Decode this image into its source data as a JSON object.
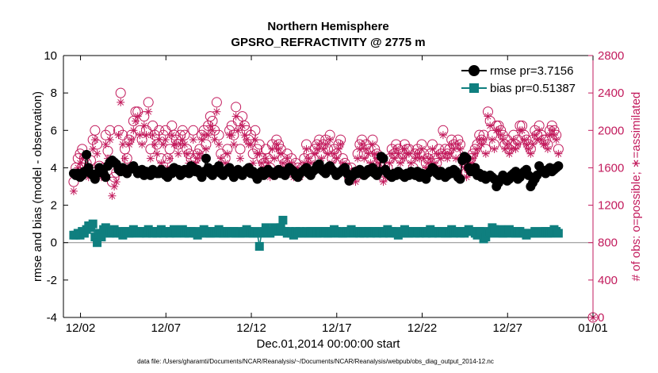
{
  "chart_data": {
    "type": "line",
    "title": "Northern Hemisphere",
    "subtitle": "GPSRO_REFRACTIVITY @ 2775 m",
    "xlabel": "Dec.01,2014 00:00:00 start",
    "ylabel": "rmse and bias (model - observation)",
    "ylabel_right": "# of obs: o=possible; ∗=assimilated",
    "ylim": [
      -4,
      10
    ],
    "ylim_right": [
      0,
      2800
    ],
    "xlim_days": [
      0.0,
      31.0
    ],
    "x_tick_values": [
      1,
      6,
      11,
      16,
      21,
      26,
      31
    ],
    "x_tick_labels": [
      "12/02",
      "12/07",
      "12/12",
      "12/17",
      "12/22",
      "12/27",
      "01/01"
    ],
    "y_tick_labels": [
      "-4",
      "-2",
      "0",
      "2",
      "4",
      "6",
      "8",
      "10"
    ],
    "y_right_tick_labels": [
      "0",
      "400",
      "800",
      "1200",
      "1600",
      "2000",
      "2400",
      "2800"
    ],
    "grid": false,
    "legend_position": "top-right",
    "footer_text": "data file: /Users/gharamti/Documents/NCAR/Reanalysis/~/Documents/NCAR/Reanalysis/webpub/obs_diag_output_2014-12.nc",
    "time_step_days": 0.125,
    "series": [
      {
        "name": "rmse pr=3.7156",
        "marker": "circle",
        "color": "#000000",
        "axis": "left",
        "values": [
          3.7,
          3.6,
          3.7,
          3.5,
          3.6,
          3.8,
          4.7,
          4.0,
          3.7,
          3.6,
          3.4,
          3.7,
          4.0,
          3.9,
          3.7,
          3.5,
          4.1,
          4.3,
          4.4,
          4.3,
          4.2,
          3.9,
          3.8,
          4.0,
          3.8,
          3.7,
          3.9,
          4.0,
          4.1,
          3.9,
          3.7,
          3.8,
          3.9,
          3.6,
          3.8,
          3.7,
          3.6,
          3.9,
          3.8,
          3.7,
          3.7,
          3.9,
          3.8,
          3.6,
          3.5,
          3.8,
          3.7,
          4.0,
          3.8,
          3.9,
          3.6,
          3.7,
          3.9,
          3.8,
          3.7,
          4.1,
          4.0,
          3.8,
          3.9,
          3.7,
          3.5,
          3.8,
          4.5,
          4.0,
          3.7,
          3.6,
          3.9,
          3.8,
          4.1,
          3.7,
          3.6,
          3.8,
          3.9,
          4.0,
          3.7,
          3.5,
          3.8,
          3.9,
          3.7,
          3.6,
          3.8,
          3.9,
          4.0,
          3.7,
          3.8,
          3.6,
          3.4,
          3.7,
          3.8,
          3.6,
          3.7,
          3.9,
          3.8,
          3.7,
          3.6,
          3.8,
          3.9,
          3.7,
          3.8,
          3.6,
          3.8,
          4.0,
          3.9,
          3.8,
          3.6,
          3.5,
          3.7,
          3.8,
          3.9,
          4.0,
          3.7,
          3.6,
          3.8,
          3.9,
          4.1,
          4.2,
          3.9,
          3.8,
          3.7,
          4.0,
          4.1,
          3.9,
          3.8,
          3.6,
          3.7,
          3.8,
          3.9,
          4.0,
          3.7,
          3.3,
          3.5,
          3.6,
          3.8,
          3.7,
          3.9,
          3.8,
          3.6,
          3.7,
          3.9,
          3.8,
          4.0,
          3.7,
          3.6,
          3.8,
          4.6,
          4.5,
          3.9,
          3.7,
          3.6,
          3.5,
          3.7,
          3.6,
          3.8,
          3.7,
          3.6,
          3.5,
          3.7,
          3.6,
          3.8,
          3.7,
          3.6,
          3.8,
          3.5,
          3.7,
          3.6,
          3.4,
          3.7,
          3.8,
          4.0,
          3.9,
          3.7,
          3.6,
          3.8,
          3.7,
          3.5,
          3.6,
          3.8,
          3.7,
          3.9,
          3.8,
          3.5,
          3.4,
          4.4,
          4.6,
          4.5,
          4.0,
          3.8,
          3.9,
          4.0,
          3.6,
          3.7,
          3.5,
          3.6,
          3.4,
          3.5,
          3.6,
          3.5,
          3.4,
          3.0,
          3.2,
          3.4,
          3.6,
          3.5,
          3.3,
          3.4,
          3.6,
          3.7,
          3.8,
          3.4,
          3.5,
          3.7,
          3.8,
          3.9,
          3.6,
          3.0,
          3.2,
          3.4,
          3.6,
          4.1,
          3.9,
          3.8,
          3.7,
          3.9,
          4.0,
          3.8,
          3.9,
          4.0,
          4.1
        ]
      },
      {
        "name": "bias pr=0.51387",
        "marker": "square",
        "color": "#0f7f7f",
        "axis": "left",
        "values": [
          0.4,
          0.4,
          0.5,
          0.4,
          0.6,
          0.5,
          0.7,
          0.9,
          0.8,
          1.0,
          0.3,
          0.0,
          0.5,
          0.3,
          0.7,
          0.8,
          0.6,
          0.5,
          0.6,
          0.7,
          0.5,
          0.6,
          0.5,
          0.4,
          0.6,
          0.6,
          0.5,
          0.5,
          0.7,
          0.6,
          0.6,
          0.5,
          0.6,
          0.6,
          0.5,
          0.7,
          0.6,
          0.5,
          0.6,
          0.5,
          0.6,
          0.7,
          0.5,
          0.6,
          0.6,
          0.5,
          0.6,
          0.7,
          0.5,
          0.6,
          0.6,
          0.7,
          0.5,
          0.6,
          0.5,
          0.6,
          0.6,
          0.5,
          0.4,
          0.5,
          0.6,
          0.7,
          0.6,
          0.5,
          0.5,
          0.6,
          0.6,
          0.5,
          0.7,
          0.6,
          0.5,
          0.5,
          0.6,
          0.6,
          0.5,
          0.6,
          0.5,
          0.6,
          0.5,
          0.5,
          0.6,
          0.7,
          0.6,
          0.5,
          0.5,
          0.6,
          0.5,
          -0.2,
          0.5,
          0.6,
          0.8,
          0.6,
          0.5,
          0.6,
          0.8,
          0.7,
          0.6,
          0.8,
          1.2,
          0.6,
          0.5,
          0.6,
          0.5,
          0.4,
          0.6,
          0.5,
          0.6,
          0.5,
          0.5,
          0.6,
          0.5,
          0.6,
          0.5,
          0.6,
          0.5,
          0.6,
          0.5,
          0.6,
          0.6,
          0.5,
          0.5,
          0.6,
          0.7,
          0.6,
          0.5,
          0.6,
          0.5,
          0.5,
          0.6,
          0.6,
          0.7,
          0.5,
          0.6,
          0.6,
          0.5,
          0.6,
          0.5,
          0.6,
          0.6,
          0.5,
          0.6,
          0.6,
          0.5,
          0.6,
          0.6,
          0.5,
          0.6,
          0.7,
          0.5,
          0.6,
          0.6,
          0.5,
          0.4,
          0.5,
          0.6,
          0.7,
          0.5,
          0.5,
          0.6,
          0.6,
          0.5,
          0.6,
          0.5,
          0.6,
          0.6,
          0.5,
          0.6,
          0.7,
          0.5,
          0.6,
          0.6,
          0.5,
          0.6,
          0.6,
          0.5,
          0.5,
          0.6,
          0.7,
          0.5,
          0.6,
          0.6,
          0.5,
          0.6,
          0.5,
          0.6,
          0.7,
          0.6,
          0.6,
          0.5,
          0.4,
          0.6,
          0.6,
          0.2,
          0.3,
          0.5,
          0.6,
          0.8,
          0.7,
          0.5,
          0.6,
          0.7,
          0.5,
          0.5,
          0.6,
          0.7,
          0.6,
          0.5,
          0.5,
          0.6,
          0.6,
          0.5,
          0.5,
          0.4,
          0.5,
          0.5,
          0.5,
          0.6,
          0.5,
          0.5,
          0.5,
          0.6,
          0.6,
          0.5,
          0.5,
          0.6,
          0.7,
          0.6,
          0.5
        ]
      },
      {
        "name": "possible",
        "marker": "open-circle",
        "color": "#c21a5c",
        "axis": "right",
        "values": [
          1450,
          1600,
          1700,
          1750,
          1800,
          1700,
          1650,
          1550,
          1680,
          1900,
          2000,
          1850,
          1620,
          1570,
          1600,
          1950,
          1780,
          2000,
          1450,
          1500,
          1550,
          2000,
          2400,
          1950,
          1800,
          1700,
          1900,
          1950,
          2100,
          2200,
          2200,
          2000,
          1900,
          2150,
          2000,
          2300,
          1800,
          2050,
          1950,
          1850,
          2000,
          1700,
          1950,
          2000,
          1700,
          1800,
          2050,
          1950,
          1900,
          1850,
          1950,
          2000,
          1950,
          1800,
          1750,
          1700,
          2000,
          1700,
          1750,
          1800,
          1950,
          2000,
          1850,
          2050,
          2150,
          2100,
          2000,
          2300,
          1950,
          1750,
          1600,
          1700,
          1800,
          2000,
          2050,
          1950,
          2250,
          2100,
          1800,
          2150,
          2050,
          2000,
          1900,
          1950,
          1750,
          2000,
          1800,
          1850,
          1700,
          1650,
          1800,
          1700,
          1600,
          1850,
          1750,
          1900,
          1850,
          1800,
          1700,
          1650,
          1750,
          1600,
          1700,
          1550,
          1650,
          1600,
          1550,
          1600,
          1700,
          1850,
          1750,
          1700,
          1600,
          1800,
          1850,
          1900,
          1750,
          1850,
          1900,
          1800,
          1950,
          1700,
          1800,
          1750,
          1850,
          1900,
          1700,
          1650,
          1600,
          1500,
          1600,
          1550,
          1500,
          1750,
          1850,
          1900,
          1750,
          1850,
          1800,
          1700,
          1900,
          1800,
          1750,
          1700,
          1650,
          1500,
          1550,
          1600,
          1700,
          1800,
          1750,
          1850,
          1800,
          1700,
          1750,
          1850,
          1800,
          1800,
          1700,
          1600,
          1750,
          1800,
          1750,
          1850,
          1750,
          1650,
          1700,
          1750,
          1850,
          1700,
          1650,
          1800,
          1750,
          2000,
          1800,
          1750,
          1800,
          1900,
          1850,
          1750,
          1900,
          1850,
          1700,
          1650,
          1550,
          1600,
          1700,
          1750,
          1800,
          1850,
          1950,
          1900,
          1950,
          1800,
          2200,
          2100,
          1950,
          1850,
          2050,
          2050,
          2000,
          1950,
          1850,
          1900,
          1800,
          1850,
          1950,
          1850,
          1900,
          2050,
          2050,
          1950,
          1900,
          1850,
          1800,
          1900,
          2000,
          1950,
          2050,
          1950,
          1900,
          1900,
          1850,
          2000,
          2050,
          2000,
          1950,
          1800
        ]
      },
      {
        "name": "assimilated",
        "marker": "asterisk",
        "color": "#c21a5c",
        "axis": "right",
        "values": [
          1350,
          1550,
          1600,
          1650,
          1700,
          1600,
          1550,
          1500,
          1600,
          1800,
          1900,
          1750,
          1550,
          1500,
          1550,
          1850,
          1700,
          1900,
          1300,
          1400,
          1450,
          1950,
          2300,
          1850,
          1700,
          1600,
          1850,
          1900,
          2000,
          2100,
          2150,
          1950,
          1850,
          2050,
          1950,
          2200,
          1700,
          1950,
          1850,
          1750,
          1900,
          1650,
          1850,
          1900,
          1600,
          1700,
          1950,
          1850,
          1850,
          1750,
          1850,
          1900,
          1850,
          1750,
          1650,
          1600,
          1900,
          1650,
          1700,
          1750,
          1900,
          1950,
          1800,
          1950,
          2050,
          2000,
          1900,
          2200,
          1850,
          1700,
          1550,
          1650,
          1750,
          1950,
          1950,
          1850,
          2150,
          2000,
          1700,
          2050,
          1950,
          1900,
          1850,
          1850,
          1650,
          1900,
          1750,
          1750,
          1650,
          1600,
          1700,
          1650,
          1500,
          1800,
          1700,
          1850,
          1800,
          1750,
          1650,
          1600,
          1700,
          1550,
          1650,
          1500,
          1600,
          1550,
          1500,
          1550,
          1650,
          1800,
          1700,
          1650,
          1550,
          1750,
          1800,
          1850,
          1700,
          1800,
          1850,
          1750,
          1900,
          1650,
          1750,
          1700,
          1800,
          1850,
          1650,
          1600,
          1550,
          1450,
          1550,
          1500,
          1450,
          1700,
          1800,
          1850,
          1700,
          1800,
          1750,
          1650,
          1850,
          1750,
          1700,
          1650,
          1600,
          1450,
          1500,
          1550,
          1650,
          1750,
          1700,
          1800,
          1750,
          1650,
          1700,
          1800,
          1750,
          1750,
          1650,
          1550,
          1700,
          1750,
          1700,
          1800,
          1700,
          1600,
          1650,
          1700,
          1800,
          1650,
          1600,
          1750,
          1700,
          1950,
          1750,
          1700,
          1750,
          1850,
          1800,
          1700,
          1850,
          1800,
          1650,
          1600,
          1500,
          1550,
          1650,
          1700,
          1750,
          1800,
          1900,
          1850,
          1900,
          1750,
          2150,
          2050,
          1900,
          1800,
          2000,
          2000,
          1950,
          1900,
          1800,
          1850,
          1750,
          1800,
          1900,
          1800,
          1850,
          2000,
          2000,
          1900,
          1850,
          1800,
          1750,
          1850,
          1950,
          1900,
          2000,
          1900,
          1850,
          1850,
          1800,
          1950,
          2000,
          1950,
          1900,
          1750
        ]
      }
    ],
    "right_axis_endpoint_marker": {
      "day": 31.0,
      "value": 0,
      "markers": [
        "open-circle",
        "asterisk"
      ]
    }
  }
}
